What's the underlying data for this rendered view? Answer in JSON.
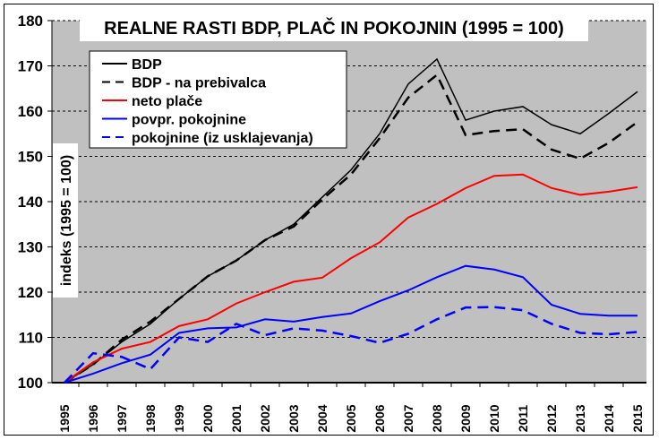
{
  "chart_data": {
    "type": "line",
    "title": "REALNE RASTI BDP, PLAČ IN POKOJNIN (1995 = 100)",
    "ylabel": "indeks (1995 = 100)",
    "xlabel": "",
    "ylim": [
      100,
      180
    ],
    "yticks": [
      "100",
      "110",
      "120",
      "130",
      "140",
      "150",
      "160",
      "170",
      "180"
    ],
    "grid": true,
    "legend_position": "top-left",
    "categories": [
      "1995",
      "1996",
      "1997",
      "1998",
      "1999",
      "2000",
      "2001",
      "2002",
      "2003",
      "2004",
      "2005",
      "2006",
      "2007",
      "2008",
      "2009",
      "2010",
      "2011",
      "2012",
      "2013",
      "2014",
      "2015"
    ],
    "series": [
      {
        "name": "BDP",
        "color": "#000000",
        "dash": false,
        "values": [
          100,
          104,
          109,
          113,
          118.5,
          123.5,
          127,
          131.5,
          135,
          141,
          147,
          155,
          166,
          171.5,
          158,
          160,
          161,
          157,
          155,
          159.5,
          164.3
        ]
      },
      {
        "name": "BDP - na prebivalca",
        "color": "#000000",
        "dash": true,
        "values": [
          100,
          104,
          109.5,
          113.5,
          118.5,
          123.5,
          127,
          131.5,
          134.5,
          140.5,
          146,
          154,
          163,
          168,
          154.7,
          155.6,
          156,
          151.5,
          149.5,
          153,
          157.6
        ]
      },
      {
        "name": "neto plače",
        "color": "#ff0000",
        "dash": false,
        "values": [
          100,
          104.5,
          107.5,
          109,
          112.5,
          114,
          117.5,
          120,
          122.3,
          123.2,
          127.5,
          131,
          136.5,
          139.5,
          143,
          145.7,
          146,
          143,
          141.5,
          142.2,
          143.2
        ]
      },
      {
        "name": "povpr. pokojnine",
        "color": "#0000ff",
        "dash": false,
        "values": [
          100,
          102,
          104.3,
          106.2,
          111,
          112,
          112.2,
          114,
          113.5,
          114.5,
          115.3,
          118,
          120.4,
          123.3,
          125.8,
          125,
          123.3,
          117.2,
          115.2,
          114.8,
          114.8
        ]
      },
      {
        "name": "pokojnine (iz usklajevanja)",
        "color": "#0000ff",
        "dash": true,
        "values": [
          100,
          106.5,
          105.7,
          103,
          110,
          109,
          113,
          110.5,
          112,
          111.5,
          110.3,
          108.8,
          110.8,
          114,
          116.6,
          116.7,
          116,
          113,
          111,
          110.7,
          111.2
        ]
      }
    ]
  }
}
